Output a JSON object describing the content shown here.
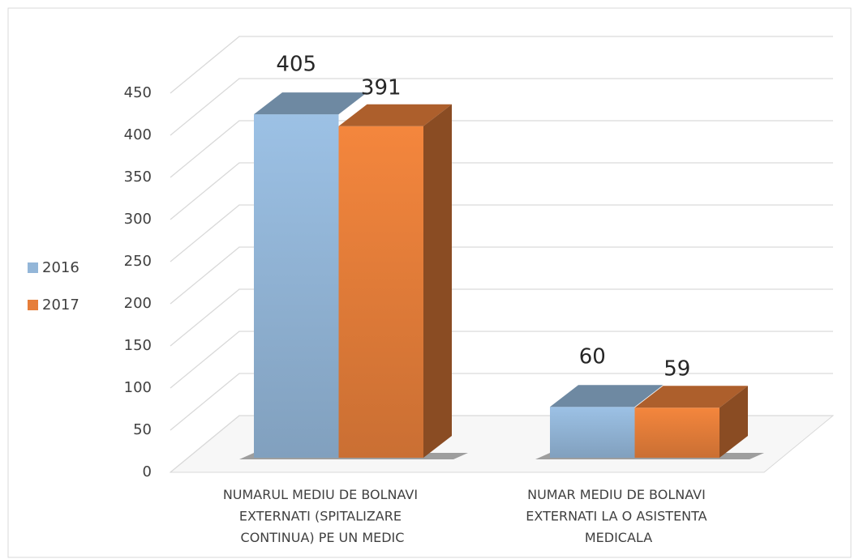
{
  "chart_data": {
    "type": "bar3d",
    "categories": [
      "NUMARUL MEDIU DE BOLNAVI EXTERNATI (SPITALIZARE CONTINUA) PE UN MEDIC",
      "NUMAR MEDIU DE BOLNAVI EXTERNATI LA O ASISTENTA MEDICALA"
    ],
    "series": [
      {
        "name": "2016",
        "color": "#93b6d8",
        "values": [
          405,
          60
        ]
      },
      {
        "name": "2017",
        "color": "#e67e3a",
        "values": [
          391,
          59
        ]
      }
    ],
    "ylim": [
      0,
      450
    ],
    "yticks": [
      0,
      50,
      100,
      150,
      200,
      250,
      300,
      350,
      400,
      450
    ],
    "grid": true,
    "legend": "left"
  }
}
